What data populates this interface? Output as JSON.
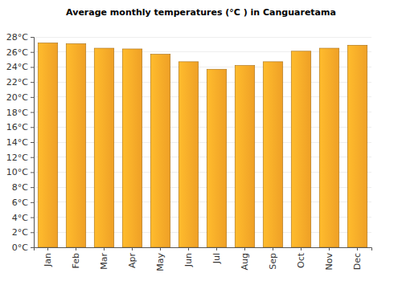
{
  "chart_data": {
    "type": "bar",
    "title": "Average monthly temperatures (°C ) in Canguaretama",
    "categories": [
      "Jan",
      "Feb",
      "Mar",
      "Apr",
      "May",
      "Jun",
      "Jul",
      "Aug",
      "Sep",
      "Oct",
      "Nov",
      "Dec"
    ],
    "values": [
      27.2,
      27.1,
      26.5,
      26.4,
      25.7,
      24.7,
      23.7,
      24.2,
      24.7,
      26.1,
      26.5,
      26.9
    ],
    "color": "#fca928",
    "ylim": [
      0,
      28
    ],
    "yticks": [
      {
        "value": 0,
        "label": "0°C"
      },
      {
        "value": 2,
        "label": "2°C"
      },
      {
        "value": 4,
        "label": "4°C"
      },
      {
        "value": 6,
        "label": "6°C"
      },
      {
        "value": 8,
        "label": "8°C"
      },
      {
        "value": 10,
        "label": "10°C"
      },
      {
        "value": 12,
        "label": "12°C"
      },
      {
        "value": 14,
        "label": "14°C"
      },
      {
        "value": 16,
        "label": "16°C"
      },
      {
        "value": 18,
        "label": "18°C"
      },
      {
        "value": 20,
        "label": "20°C"
      },
      {
        "value": 22,
        "label": "22°C"
      },
      {
        "value": 24,
        "label": "24°C"
      },
      {
        "value": 26,
        "label": "26°C"
      },
      {
        "value": 28,
        "label": "28°C"
      }
    ],
    "grid": true
  }
}
